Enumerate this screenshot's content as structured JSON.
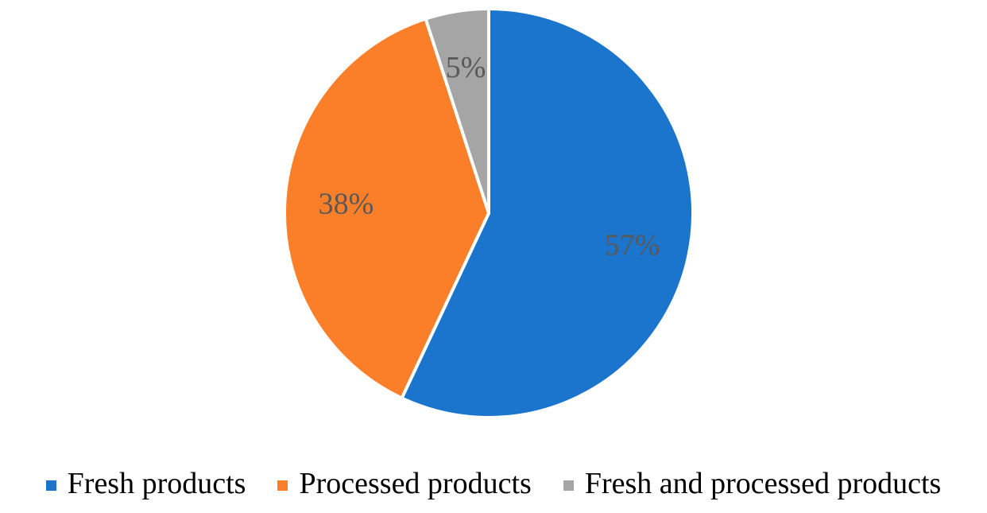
{
  "chart_data": {
    "type": "pie",
    "slices": [
      {
        "label": "Fresh products",
        "value": 57,
        "display": "57%",
        "color": "#1b75cc"
      },
      {
        "label": "Processed products",
        "value": 38,
        "display": "38%",
        "color": "#fa7f28"
      },
      {
        "label": "Fresh and processed products",
        "value": 5,
        "display": "5%",
        "color": "#a5a5a5"
      }
    ],
    "legend_position": "bottom",
    "start": "12 o'clock",
    "direction": "clockwise"
  }
}
